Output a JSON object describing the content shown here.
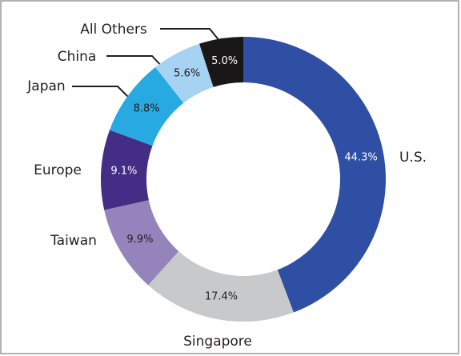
{
  "chart_data": {
    "type": "donut",
    "categories": [
      "U.S.",
      "Singapore",
      "Taiwan",
      "Europe",
      "Japan",
      "China",
      "All Others"
    ],
    "values": [
      44.3,
      17.4,
      9.9,
      9.1,
      8.8,
      5.6,
      5.0
    ],
    "value_labels": [
      "44.3%",
      "17.4%",
      "9.9%",
      "9.1%",
      "8.8%",
      "5.6%",
      "5.0%"
    ],
    "colors": [
      "#2e4fa3",
      "#c8c9cb",
      "#9583bb",
      "#432d85",
      "#27a9e1",
      "#a6d3f2",
      "#1a1718"
    ]
  }
}
